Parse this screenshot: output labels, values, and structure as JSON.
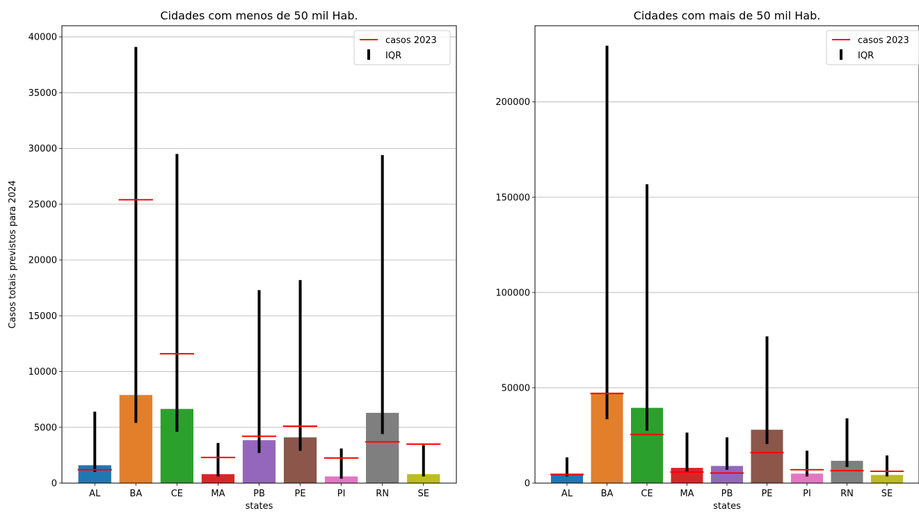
{
  "chart_data": [
    {
      "type": "bar",
      "title": "Cidades com menos de 50 mil Hab.",
      "xlabel": "states",
      "ylabel": "Casos totais previstos para 2024",
      "ylim": [
        0,
        41000
      ],
      "yticks": [
        0,
        5000,
        10000,
        15000,
        20000,
        25000,
        30000,
        35000,
        40000
      ],
      "grid": "y",
      "legend_position": "top-right",
      "legend": [
        {
          "label": "casos 2023",
          "marker": "line",
          "color": "#ff0000"
        },
        {
          "label": "IQR",
          "marker": "bar",
          "color": "#000000"
        }
      ],
      "categories": [
        "AL",
        "BA",
        "CE",
        "MA",
        "PB",
        "PE",
        "PI",
        "RN",
        "SE"
      ],
      "colors": [
        "#1f77b4",
        "#e37f2b",
        "#2ca02c",
        "#d62728",
        "#9467bd",
        "#8c564b",
        "#e377c2",
        "#7f7f7f",
        "#bcbd22"
      ],
      "values": [
        1600,
        7900,
        6650,
        800,
        3850,
        4100,
        600,
        6300,
        800
      ],
      "iqr": [
        [
          1000,
          6400
        ],
        [
          5400,
          39100
        ],
        [
          4600,
          29500
        ],
        [
          600,
          3600
        ],
        [
          2700,
          17300
        ],
        [
          2900,
          18200
        ],
        [
          400,
          3100
        ],
        [
          4400,
          29400
        ],
        [
          600,
          3400
        ]
      ],
      "cases_2023": [
        1200,
        25400,
        11600,
        2300,
        4200,
        5100,
        2250,
        3700,
        3500
      ]
    },
    {
      "type": "bar",
      "title": "Cidades com mais de 50 mil Hab.",
      "xlabel": "states",
      "ylabel": "",
      "ylim": [
        0,
        240000
      ],
      "yticks": [
        0,
        50000,
        100000,
        150000,
        200000
      ],
      "grid": "y",
      "legend_position": "top-right",
      "legend": [
        {
          "label": "casos 2023",
          "marker": "line",
          "color": "#ff0000"
        },
        {
          "label": "IQR",
          "marker": "bar",
          "color": "#000000"
        }
      ],
      "categories": [
        "AL",
        "BA",
        "CE",
        "MA",
        "PB",
        "PE",
        "PI",
        "RN",
        "SE"
      ],
      "colors": [
        "#1f77b4",
        "#e37f2b",
        "#2ca02c",
        "#d62728",
        "#9467bd",
        "#8c564b",
        "#e377c2",
        "#7f7f7f",
        "#bcbd22"
      ],
      "values": [
        5000,
        47500,
        39500,
        8000,
        9000,
        28000,
        5000,
        11700,
        4300
      ],
      "iqr": [
        [
          3500,
          13500
        ],
        [
          33500,
          229500
        ],
        [
          27500,
          156800
        ],
        [
          5500,
          26500
        ],
        [
          7000,
          24000
        ],
        [
          20500,
          77000
        ],
        [
          3500,
          17000
        ],
        [
          8500,
          34000
        ],
        [
          3500,
          14500
        ]
      ],
      "cases_2023": [
        4500,
        47000,
        25500,
        5800,
        5300,
        16000,
        7000,
        6500,
        6200
      ]
    }
  ]
}
